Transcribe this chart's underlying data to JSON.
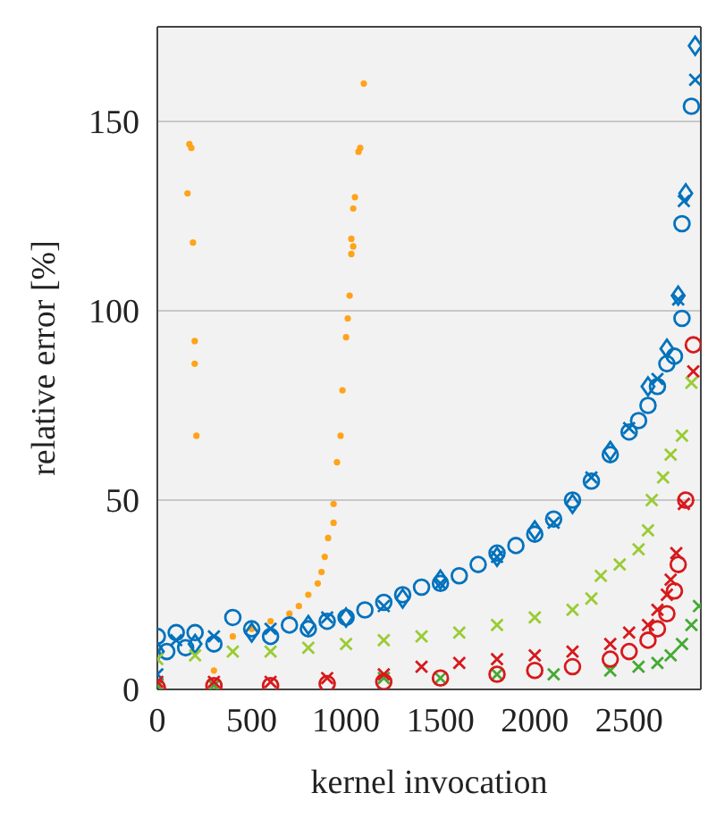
{
  "chart_data": {
    "type": "scatter",
    "xlabel": "kernel invocation",
    "ylabel": "relative error [%]",
    "xlim": [
      0,
      2880
    ],
    "ylim": [
      0,
      175
    ],
    "xticks": [
      0,
      500,
      1000,
      1500,
      2000,
      2500
    ],
    "yticks": [
      0,
      50,
      100,
      150
    ],
    "grid": "y",
    "legend": false,
    "series": [
      {
        "color": "#ffa319",
        "marker": "circle",
        "x": [
          160,
          170,
          180,
          189,
          198,
          198,
          207,
          300,
          400,
          500,
          600,
          700,
          750,
          800,
          850,
          870,
          887,
          905,
          934,
          934,
          952,
          971,
          981,
          1000,
          1009,
          1019,
          1028,
          1038,
          1028,
          1038,
          1047,
          1066,
          1075,
          1094
        ],
        "values": [
          131,
          144,
          143,
          118,
          92,
          86,
          67,
          5,
          14,
          16,
          18,
          20,
          22,
          25,
          28,
          31,
          35,
          40,
          44,
          49,
          60,
          67,
          79,
          93,
          98,
          104,
          115,
          117,
          119,
          127,
          130,
          142,
          143,
          160
        ]
      },
      {
        "color": "#0072bd",
        "marker": "circle",
        "x": [
          0,
          50,
          100,
          150,
          200,
          300,
          400,
          500,
          600,
          700,
          800,
          900,
          1000,
          1100,
          1200,
          1300,
          1400,
          1500,
          1600,
          1700,
          1800,
          1900,
          2000,
          2100,
          2200,
          2300,
          2400,
          2500,
          2550,
          2600,
          2650,
          2700,
          2740,
          2780,
          2780,
          2830
        ],
        "values": [
          14,
          10,
          15,
          11,
          15,
          12,
          19,
          16,
          14,
          17,
          16,
          18,
          19,
          21,
          23,
          25,
          27,
          28,
          30,
          33,
          36,
          38,
          41,
          45,
          50,
          55,
          62,
          68,
          71,
          75,
          80,
          86,
          88,
          98,
          123,
          154
        ]
      },
      {
        "color": "#0072bd",
        "marker": "diamond",
        "x": [
          0,
          200,
          500,
          800,
          1000,
          1300,
          1500,
          1800,
          2000,
          2200,
          2400,
          2600,
          2700,
          2760,
          2800,
          2850
        ],
        "values": [
          10,
          12,
          15,
          17,
          19,
          24,
          29,
          35,
          42,
          49,
          63,
          80,
          90,
          104,
          131,
          170
        ]
      },
      {
        "color": "#0072bd",
        "marker": "cross",
        "x": [
          0,
          100,
          300,
          600,
          900,
          1200,
          1500,
          1800,
          2100,
          2300,
          2500,
          2650,
          2760,
          2790,
          2850
        ],
        "values": [
          4,
          13,
          14,
          16,
          19,
          22,
          28,
          35,
          44,
          56,
          69,
          82,
          103,
          129,
          161
        ]
      },
      {
        "color": "#99cc33",
        "marker": "cross",
        "x": [
          0,
          200,
          400,
          600,
          800,
          1000,
          1200,
          1400,
          1600,
          1800,
          2000,
          2200,
          2300,
          2350,
          2450,
          2550,
          2600,
          2620,
          2680,
          2720,
          2780,
          2830
        ],
        "values": [
          8,
          9,
          10,
          10,
          11,
          12,
          13,
          14,
          15,
          17,
          19,
          21,
          24,
          30,
          33,
          37,
          42,
          50,
          56,
          62,
          67,
          81
        ]
      },
      {
        "color": "#44aa33",
        "marker": "cross",
        "x": [
          0,
          300,
          1200,
          1500,
          1800,
          2100,
          2400,
          2550,
          2650,
          2720,
          2780,
          2830,
          2870
        ],
        "values": [
          1,
          1,
          3,
          3,
          4,
          4,
          5,
          6,
          7,
          9,
          12,
          17,
          22
        ]
      },
      {
        "color": "#d7191c",
        "marker": "circle",
        "x": [
          0,
          300,
          600,
          900,
          1200,
          1500,
          1800,
          2000,
          2200,
          2400,
          2500,
          2600,
          2650,
          2700,
          2740,
          2760,
          2800,
          2840
        ],
        "values": [
          0.5,
          1,
          1,
          1.5,
          2,
          3,
          4,
          5,
          6,
          8,
          10,
          13,
          16,
          20,
          26,
          33,
          50,
          91
        ]
      },
      {
        "color": "#d7191c",
        "marker": "cross",
        "x": [
          0,
          300,
          600,
          900,
          1200,
          1400,
          1600,
          1800,
          2000,
          2200,
          2400,
          2500,
          2600,
          2650,
          2700,
          2720,
          2750,
          2790,
          2840
        ],
        "values": [
          2,
          2,
          2,
          3,
          4,
          6,
          7,
          8,
          9,
          10,
          12,
          15,
          17,
          21,
          25,
          29,
          36,
          49,
          84
        ]
      }
    ]
  }
}
